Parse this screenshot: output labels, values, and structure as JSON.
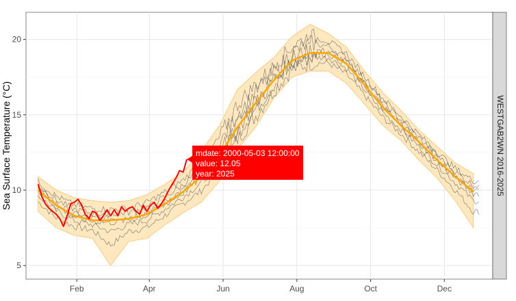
{
  "chart_data": {
    "type": "line",
    "facet_label": "WESTGAB2WN 2016-2025",
    "ylabel": "Sea Surface Temperature (°C)",
    "xlabel": "",
    "x_ticks": [
      "Feb",
      "Apr",
      "Jun",
      "Aug",
      "Oct",
      "Dec"
    ],
    "x_tick_days": [
      32,
      92,
      153,
      214,
      275,
      336
    ],
    "y_ticks": [
      5,
      10,
      15,
      20
    ],
    "xlim_days": [
      -10,
      376
    ],
    "ylim": [
      4.1,
      21.8
    ],
    "grid": true,
    "legend": "none",
    "colors": {
      "highlight": "#ff0000",
      "mean": "#ffa500",
      "band": "#ffe4b5",
      "band_edge": "#f6c46e",
      "years": "#555555",
      "strip": "#d9d9d9"
    },
    "series": [
      {
        "name": "2025",
        "x": [
          0,
          3,
          6,
          9,
          12,
          15,
          18,
          21,
          24,
          27,
          30,
          33,
          36,
          39,
          42,
          45,
          48,
          51,
          54,
          57,
          60,
          63,
          66,
          69,
          72,
          75,
          78,
          81,
          84,
          87,
          90,
          93,
          96,
          99,
          102,
          105,
          108,
          111,
          114,
          117,
          120,
          123
        ],
        "y": [
          10.4,
          9.6,
          9.1,
          8.8,
          8.6,
          8.4,
          8.1,
          7.6,
          8.3,
          9.1,
          9.2,
          9.4,
          9.0,
          8.4,
          8.1,
          8.6,
          8.5,
          8.0,
          8.3,
          8.7,
          8.3,
          8.7,
          8.3,
          8.9,
          8.6,
          8.8,
          8.9,
          8.6,
          8.4,
          9.0,
          8.6,
          9.0,
          9.2,
          8.8,
          9.1,
          9.5,
          10.0,
          10.4,
          10.8,
          11.3,
          11.2,
          12.05
        ]
      },
      {
        "name": "mean",
        "x": [
          0,
          15,
          30,
          45,
          60,
          75,
          90,
          105,
          120,
          135,
          150,
          165,
          180,
          195,
          210,
          225,
          240,
          255,
          270,
          285,
          300,
          315,
          330,
          345,
          360
        ],
        "y": [
          10.0,
          9.0,
          8.3,
          8.0,
          8.0,
          8.1,
          8.4,
          9.1,
          9.9,
          10.9,
          12.3,
          14.2,
          15.8,
          17.3,
          18.6,
          19.1,
          19.1,
          18.4,
          17.0,
          15.5,
          14.3,
          13.2,
          12.0,
          10.9,
          9.9
        ]
      },
      {
        "name": "min",
        "x": [
          0,
          15,
          30,
          45,
          60,
          75,
          90,
          105,
          120,
          135,
          150,
          165,
          180,
          195,
          210,
          225,
          240,
          255,
          270,
          285,
          300,
          315,
          330,
          345,
          360
        ],
        "y": [
          8.6,
          7.5,
          7.0,
          6.8,
          5.0,
          6.6,
          6.8,
          7.7,
          8.5,
          9.2,
          10.6,
          12.7,
          14.2,
          16.1,
          17.5,
          17.9,
          17.9,
          17.1,
          15.7,
          14.3,
          13.3,
          12.0,
          10.8,
          9.3,
          7.5
        ]
      },
      {
        "name": "max",
        "x": [
          0,
          15,
          30,
          45,
          60,
          75,
          90,
          105,
          120,
          135,
          150,
          165,
          180,
          195,
          210,
          225,
          240,
          255,
          270,
          285,
          300,
          315,
          330,
          345,
          360
        ],
        "y": [
          10.9,
          10.0,
          9.5,
          9.3,
          9.2,
          9.3,
          9.7,
          10.4,
          11.2,
          12.6,
          14.3,
          16.7,
          17.8,
          18.8,
          20.2,
          21.0,
          20.4,
          19.5,
          17.9,
          16.5,
          15.3,
          14.0,
          12.9,
          11.8,
          11.1
        ]
      }
    ],
    "tooltip": {
      "lines": [
        "mdate: 2000-05-03 12:00:00",
        "value: 12.05",
        "year: 2025"
      ],
      "x": 123,
      "y": 12.05
    }
  }
}
